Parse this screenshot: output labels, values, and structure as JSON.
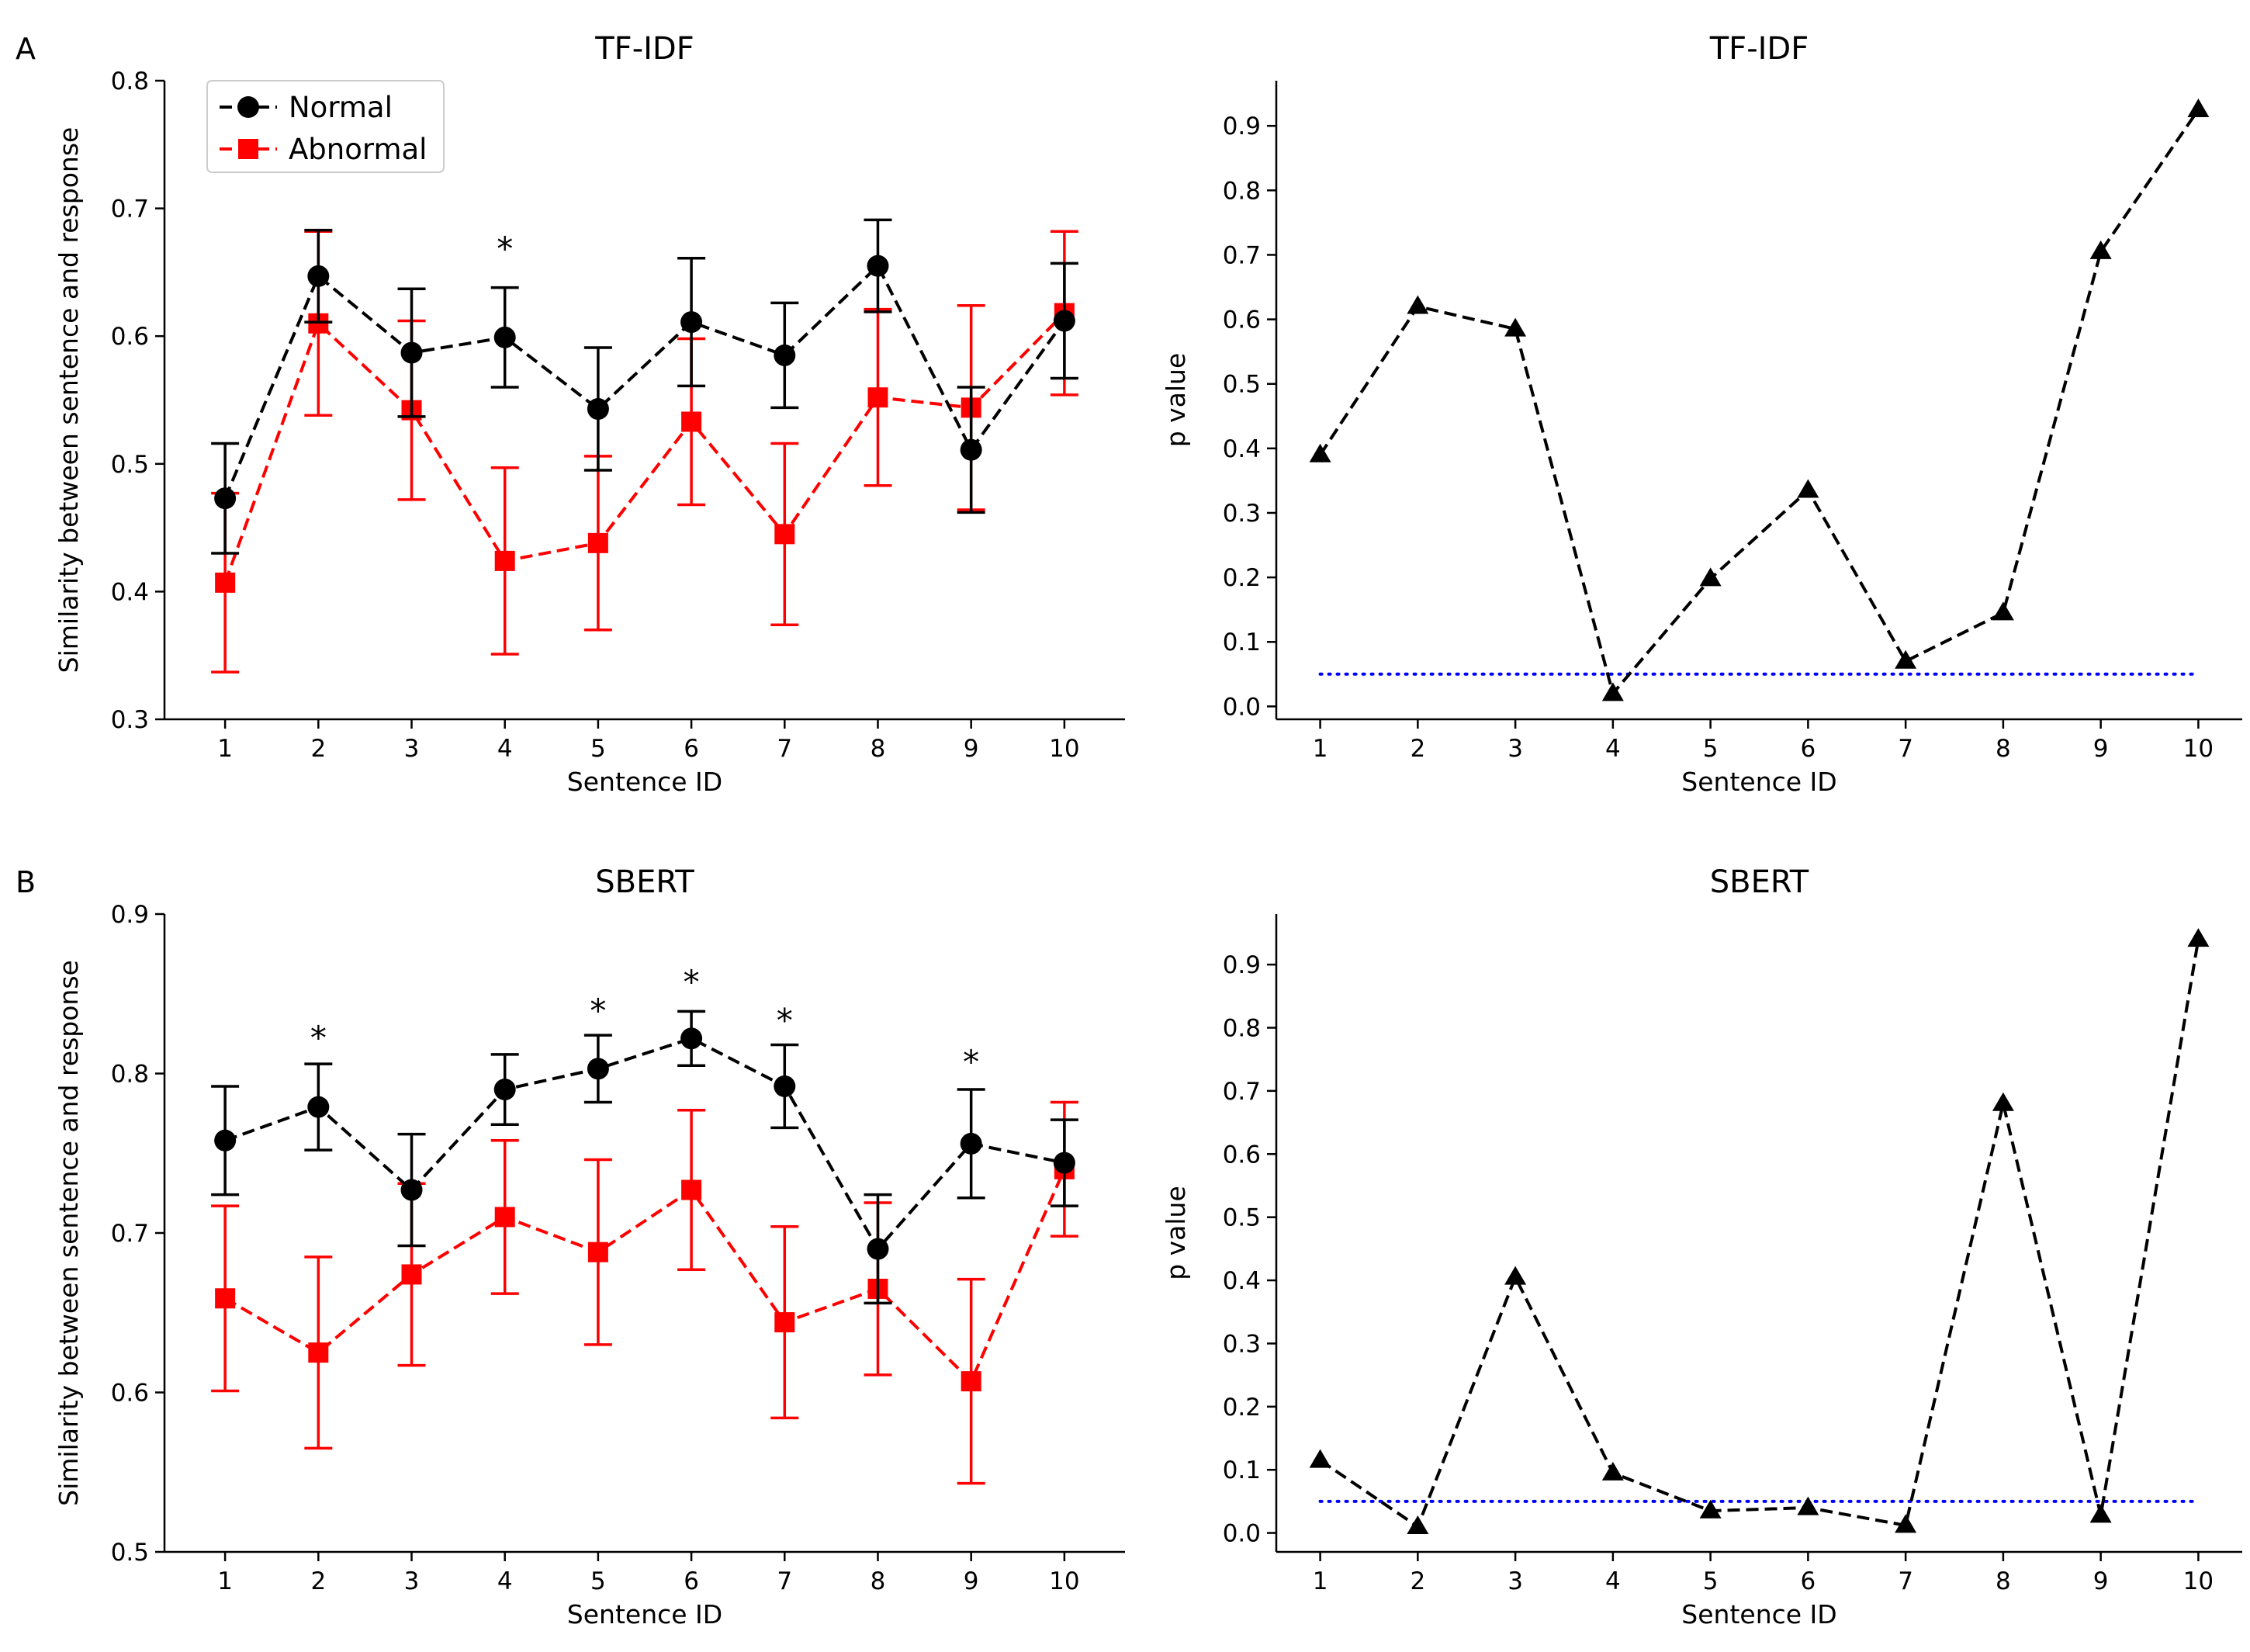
{
  "chart_data": [
    {
      "id": "A-left",
      "panel_letter": "A",
      "type": "line",
      "title": "TF-IDF",
      "xlabel": "Sentence ID",
      "ylabel": "Similarity between sentence and response",
      "ylim": [
        0.3,
        0.8
      ],
      "xlim": [
        0.35,
        10.65
      ],
      "yticks": [
        0.3,
        0.4,
        0.5,
        0.6,
        0.7,
        0.8
      ],
      "ytick_labels": [
        "0.3",
        "0.4",
        "0.5",
        "0.6",
        "0.7",
        "0.8"
      ],
      "x": [
        1,
        2,
        3,
        4,
        5,
        6,
        7,
        8,
        9,
        10
      ],
      "legend": {
        "position": "top-left"
      },
      "series": [
        {
          "name": "Normal",
          "color": "#000000",
          "marker": "circle",
          "values": [
            0.473,
            0.647,
            0.587,
            0.599,
            0.543,
            0.611,
            0.585,
            0.655,
            0.511,
            0.612
          ],
          "errors": [
            0.043,
            0.036,
            0.05,
            0.039,
            0.048,
            0.05,
            0.041,
            0.036,
            0.049,
            0.045
          ]
        },
        {
          "name": "Abnormal",
          "color": "#ff0000",
          "marker": "square",
          "values": [
            0.407,
            0.61,
            0.542,
            0.424,
            0.438,
            0.533,
            0.445,
            0.552,
            0.544,
            0.618
          ],
          "errors": [
            0.07,
            0.072,
            0.07,
            0.073,
            0.068,
            0.065,
            0.071,
            0.069,
            0.08,
            0.064
          ]
        }
      ],
      "annotations": [
        {
          "x": 4,
          "y": 0.673,
          "text": "*"
        }
      ]
    },
    {
      "id": "A-right",
      "type": "line",
      "title": "TF-IDF",
      "xlabel": "Sentence ID",
      "ylabel": "p value",
      "ylim": [
        -0.02,
        0.97
      ],
      "xlim": [
        0.55,
        10.45
      ],
      "yticks": [
        0.0,
        0.1,
        0.2,
        0.3,
        0.4,
        0.5,
        0.6,
        0.7,
        0.8,
        0.9
      ],
      "ytick_labels": [
        "0.0",
        "0.1",
        "0.2",
        "0.3",
        "0.4",
        "0.5",
        "0.6",
        "0.7",
        "0.8",
        "0.9"
      ],
      "x": [
        1,
        2,
        3,
        4,
        5,
        6,
        7,
        8,
        9,
        10
      ],
      "series": [
        {
          "name": "p value",
          "color": "#000000",
          "marker": "triangle",
          "values": [
            0.39,
            0.62,
            0.585,
            0.02,
            0.198,
            0.335,
            0.07,
            0.145,
            0.705,
            0.925
          ]
        }
      ],
      "threshold": {
        "value": 0.05,
        "color": "#0000ff"
      }
    },
    {
      "id": "B-left",
      "panel_letter": "B",
      "type": "line",
      "title": "SBERT",
      "xlabel": "Sentence ID",
      "ylabel": "Similarity between sentence and response",
      "ylim": [
        0.5,
        0.9
      ],
      "xlim": [
        0.35,
        10.65
      ],
      "yticks": [
        0.5,
        0.6,
        0.7,
        0.8,
        0.9
      ],
      "ytick_labels": [
        "0.5",
        "0.6",
        "0.7",
        "0.8",
        "0.9"
      ],
      "x": [
        1,
        2,
        3,
        4,
        5,
        6,
        7,
        8,
        9,
        10
      ],
      "series": [
        {
          "name": "Normal",
          "color": "#000000",
          "marker": "circle",
          "values": [
            0.758,
            0.779,
            0.727,
            0.79,
            0.803,
            0.822,
            0.792,
            0.69,
            0.756,
            0.744
          ],
          "errors": [
            0.034,
            0.027,
            0.035,
            0.022,
            0.021,
            0.017,
            0.026,
            0.034,
            0.034,
            0.027
          ]
        },
        {
          "name": "Abnormal",
          "color": "#ff0000",
          "marker": "square",
          "values": [
            0.659,
            0.625,
            0.674,
            0.71,
            0.688,
            0.727,
            0.644,
            0.665,
            0.607,
            0.74
          ],
          "errors": [
            0.058,
            0.06,
            0.057,
            0.048,
            0.058,
            0.05,
            0.06,
            0.054,
            0.064,
            0.042
          ]
        }
      ],
      "annotations": [
        {
          "x": 2,
          "y": 0.826,
          "text": "*"
        },
        {
          "x": 5,
          "y": 0.843,
          "text": "*"
        },
        {
          "x": 6,
          "y": 0.861,
          "text": "*"
        },
        {
          "x": 7,
          "y": 0.837,
          "text": "*"
        },
        {
          "x": 9,
          "y": 0.811,
          "text": "*"
        }
      ]
    },
    {
      "id": "B-right",
      "type": "line",
      "title": "SBERT",
      "xlabel": "Sentence ID",
      "ylabel": "p value",
      "ylim": [
        -0.03,
        0.98
      ],
      "xlim": [
        0.55,
        10.45
      ],
      "yticks": [
        0.0,
        0.1,
        0.2,
        0.3,
        0.4,
        0.5,
        0.6,
        0.7,
        0.8,
        0.9
      ],
      "ytick_labels": [
        "0.0",
        "0.1",
        "0.2",
        "0.3",
        "0.4",
        "0.5",
        "0.6",
        "0.7",
        "0.8",
        "0.9"
      ],
      "x": [
        1,
        2,
        3,
        4,
        5,
        6,
        7,
        8,
        9,
        10
      ],
      "series": [
        {
          "name": "p value",
          "color": "#000000",
          "marker": "triangle",
          "values": [
            0.115,
            0.01,
            0.405,
            0.095,
            0.035,
            0.04,
            0.012,
            0.68,
            0.028,
            0.94
          ]
        }
      ],
      "threshold": {
        "value": 0.05,
        "color": "#0000ff"
      }
    }
  ]
}
